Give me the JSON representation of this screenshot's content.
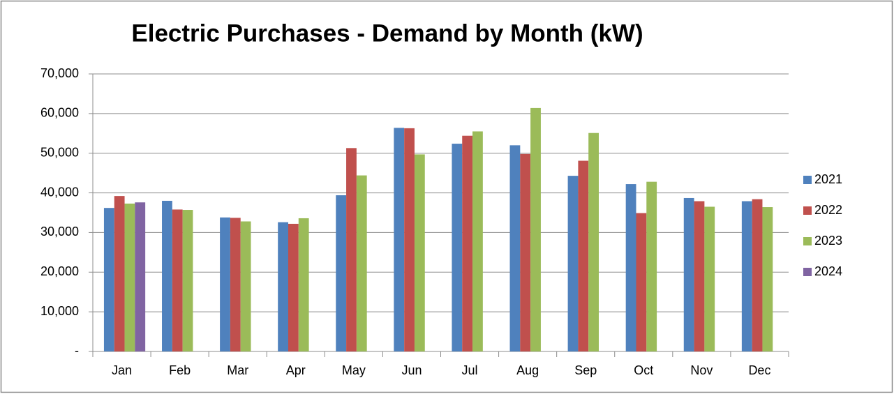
{
  "chart_data": {
    "type": "bar",
    "title": "Electric Purchases - Demand by Month (kW)",
    "categories": [
      "Jan",
      "Feb",
      "Mar",
      "Apr",
      "May",
      "Jun",
      "Jul",
      "Aug",
      "Sep",
      "Oct",
      "Nov",
      "Dec"
    ],
    "series": [
      {
        "name": "2021",
        "color": "#4f81bd",
        "values": [
          36200,
          38000,
          33800,
          32600,
          39400,
          56400,
          52400,
          52000,
          44300,
          42200,
          38700,
          37900
        ]
      },
      {
        "name": "2022",
        "color": "#c0504d",
        "values": [
          39200,
          35800,
          33700,
          32200,
          51300,
          56300,
          54400,
          49800,
          48100,
          34900,
          37900,
          38400
        ]
      },
      {
        "name": "2023",
        "color": "#9bbb59",
        "values": [
          37300,
          35700,
          32800,
          33600,
          44400,
          49700,
          55500,
          61400,
          55100,
          42800,
          36500,
          36400
        ]
      },
      {
        "name": "2024",
        "color": "#8064a2",
        "values": [
          37600,
          null,
          null,
          null,
          null,
          null,
          null,
          null,
          null,
          null,
          null,
          null
        ]
      }
    ],
    "ylim": [
      0,
      70000
    ],
    "yticks": [
      {
        "value": 0,
        "label": "-"
      },
      {
        "value": 10000,
        "label": "10,000"
      },
      {
        "value": 20000,
        "label": "20,000"
      },
      {
        "value": 30000,
        "label": "30,000"
      },
      {
        "value": 40000,
        "label": "40,000"
      },
      {
        "value": 50000,
        "label": "50,000"
      },
      {
        "value": 60000,
        "label": "60,000"
      },
      {
        "value": 70000,
        "label": "70,000"
      }
    ],
    "grid": true,
    "legend": "right"
  }
}
